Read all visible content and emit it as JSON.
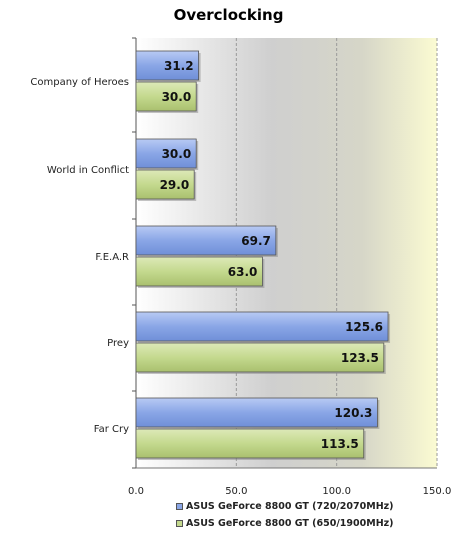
{
  "chart_data": {
    "type": "bar",
    "orientation": "horizontal",
    "title": "Overclocking",
    "categories": [
      "Company of Heroes",
      "World in Conflict",
      "F.E.A.R",
      "Prey",
      "Far Cry"
    ],
    "series": [
      {
        "name": "ASUS GeForce 8800 GT (720/2070MHz)",
        "values": [
          31.2,
          30.0,
          69.7,
          125.6,
          120.3
        ],
        "color": "#8aa6e6"
      },
      {
        "name": "ASUS GeForce 8800 GT (650/1900MHz)",
        "values": [
          30.0,
          29.0,
          63.0,
          123.5,
          113.5
        ],
        "color": "#c4d98e"
      }
    ],
    "data_labels": [
      [
        "31.2",
        "30.0",
        "69.7",
        "125.6",
        "120.3"
      ],
      [
        "30.0",
        "29.0",
        "63.0",
        "123.5",
        "113.5"
      ]
    ],
    "xlim": [
      0,
      150
    ],
    "xticks": [
      "0.0",
      "50.0",
      "100.0",
      "150.0"
    ],
    "grid": true,
    "legend_position": "bottom"
  }
}
